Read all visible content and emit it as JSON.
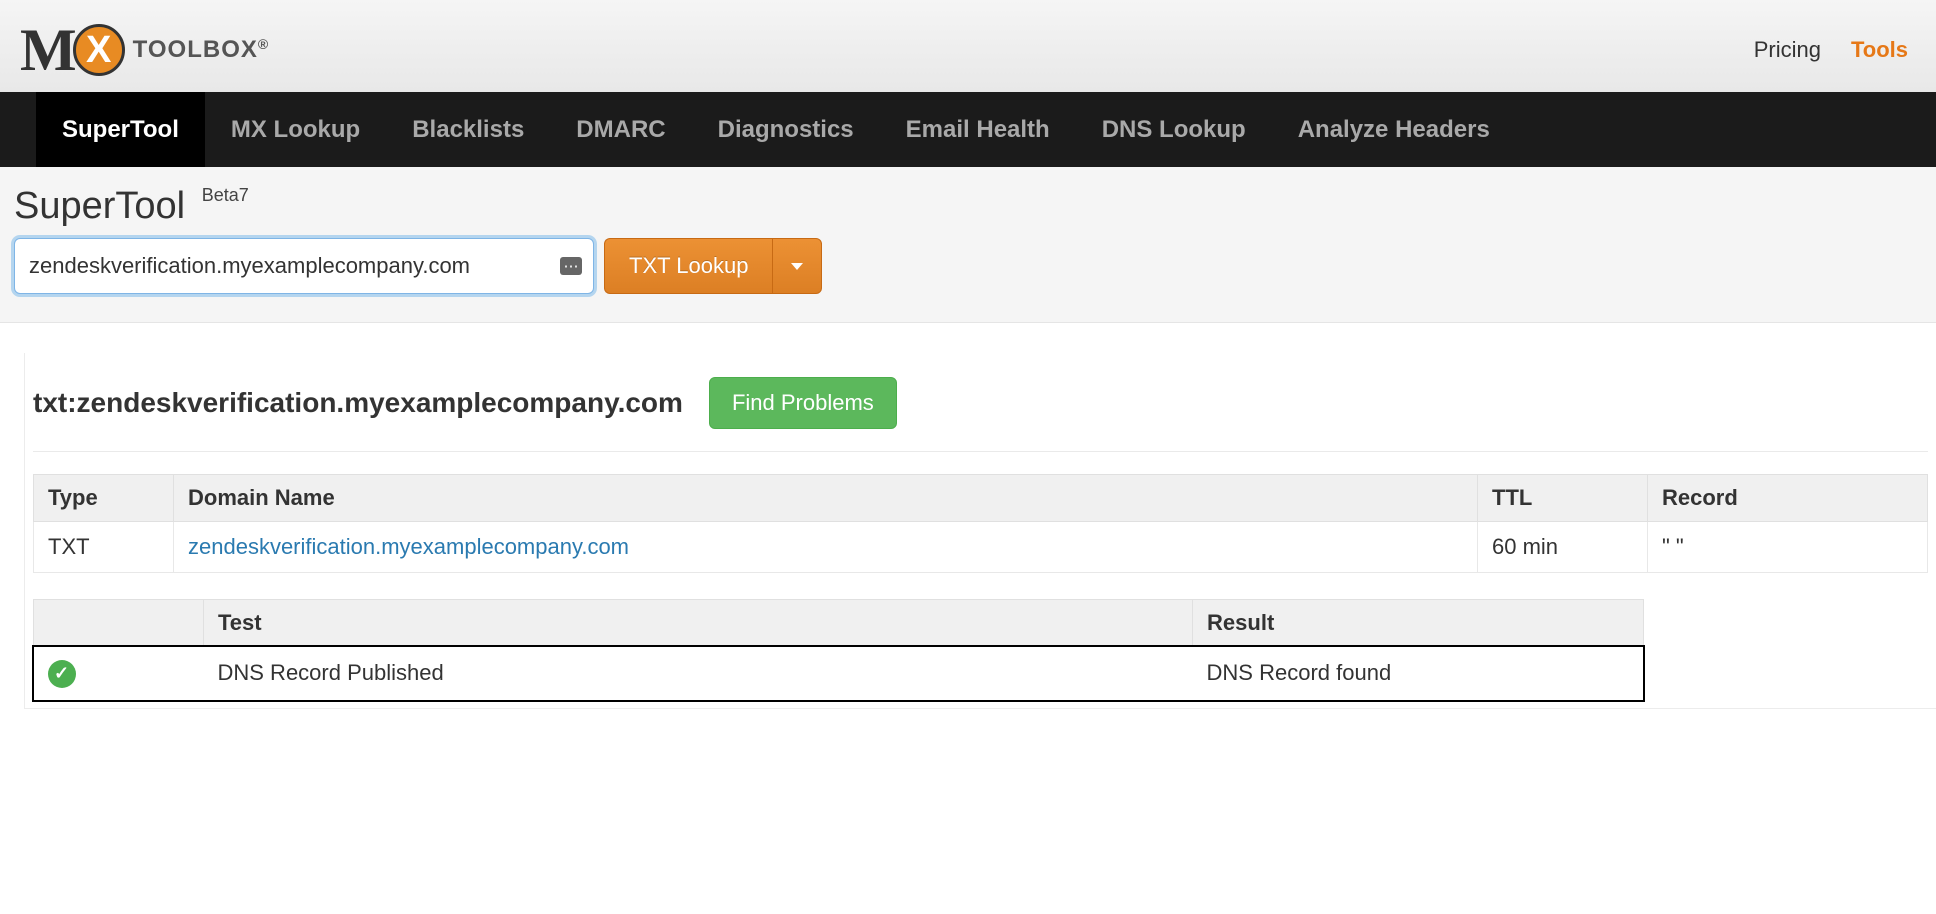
{
  "toplinks": {
    "pricing": "Pricing",
    "tools": "Tools"
  },
  "logo": {
    "m": "M",
    "x": "X",
    "toolbox": "TOOLBOX",
    "reg": "®"
  },
  "nav": {
    "items": [
      {
        "label": "SuperTool",
        "active": true
      },
      {
        "label": "MX Lookup",
        "active": false
      },
      {
        "label": "Blacklists",
        "active": false
      },
      {
        "label": "DMARC",
        "active": false
      },
      {
        "label": "Diagnostics",
        "active": false
      },
      {
        "label": "Email Health",
        "active": false
      },
      {
        "label": "DNS Lookup",
        "active": false
      },
      {
        "label": "Analyze Headers",
        "active": false
      }
    ]
  },
  "page": {
    "title": "SuperTool",
    "beta": "Beta7",
    "input_value": "zendeskverification.myexamplecompany.com",
    "button_label": "TXT Lookup"
  },
  "result": {
    "title": "txt:zendeskverification.myexamplecompany.com",
    "find_problems_label": "Find Problems",
    "records_table": {
      "columns": [
        "Type",
        "Domain Name",
        "TTL",
        "Record"
      ],
      "rows": [
        {
          "type": "TXT",
          "domain": "zendeskverification.myexamplecompany.com",
          "ttl": "60 min",
          "record": "\"                                  \""
        }
      ]
    },
    "test_table": {
      "columns": [
        "Test",
        "Result"
      ],
      "rows": [
        {
          "icon": "check",
          "test": "DNS Record Published",
          "result": "DNS Record found"
        }
      ]
    }
  }
}
